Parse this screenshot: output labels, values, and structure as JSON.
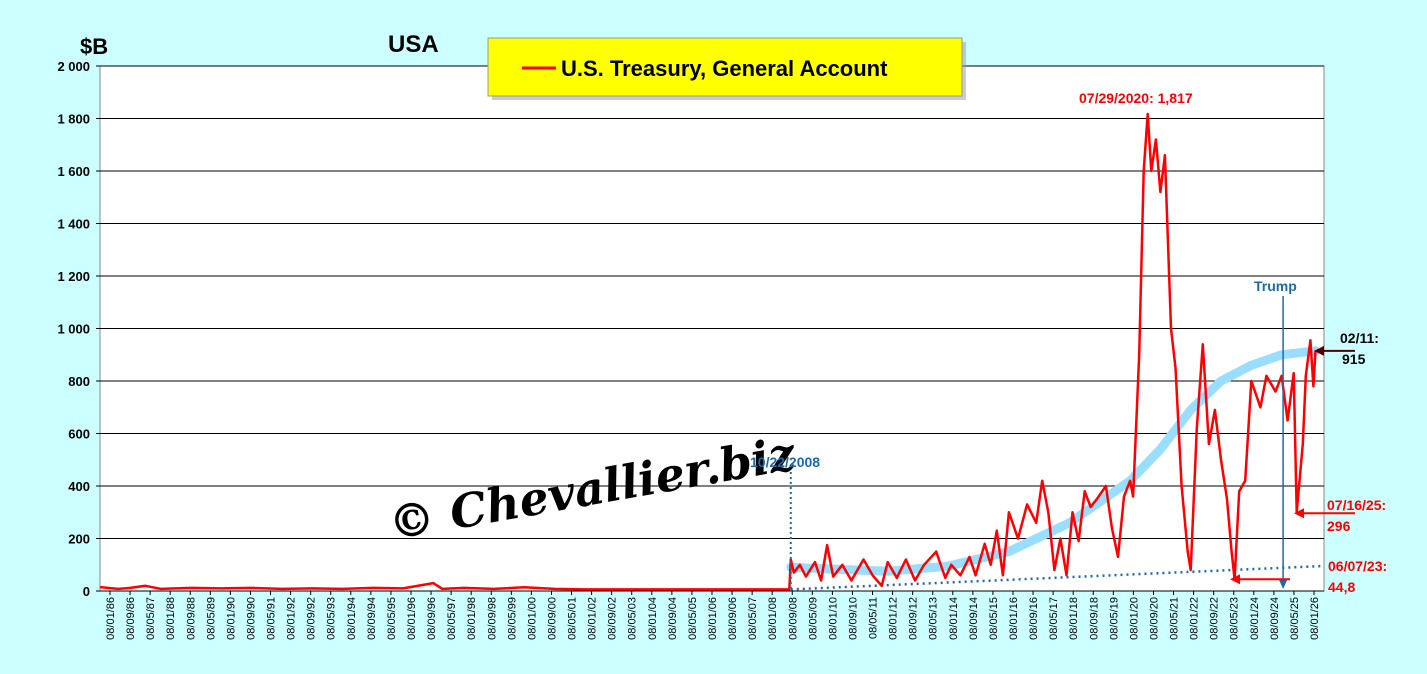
{
  "chart_data": {
    "type": "line",
    "unit_label": "$B",
    "country_label": "USA",
    "title": "",
    "xlabel": "",
    "ylabel": "",
    "ylim": [
      0,
      2000
    ],
    "y_ticks": [
      0,
      200,
      400,
      600,
      800,
      1000,
      1200,
      1400,
      1600,
      1800,
      2000
    ],
    "y_tick_labels": [
      "0",
      "200",
      "400",
      "600",
      "800",
      "1 000",
      "1 200",
      "1 400",
      "1 600",
      "1 800",
      "2 000"
    ],
    "x_tick_labels": [
      "08/01/86",
      "08/09/86",
      "08/05/87",
      "08/01/88",
      "08/09/88",
      "08/05/89",
      "08/01/90",
      "08/09/90",
      "08/05/91",
      "08/01/92",
      "08/09/92",
      "08/05/93",
      "08/01/94",
      "08/09/94",
      "08/05/95",
      "08/01/96",
      "08/09/96",
      "08/05/97",
      "08/01/98",
      "08/09/98",
      "08/05/99",
      "08/01/00",
      "08/09/00",
      "08/05/01",
      "08/01/02",
      "08/09/02",
      "08/05/03",
      "08/01/04",
      "08/09/04",
      "08/05/05",
      "08/01/06",
      "08/09/06",
      "08/05/07",
      "08/01/08",
      "08/09/08",
      "08/05/09",
      "08/01/10",
      "08/09/10",
      "08/05/11",
      "08/01/12",
      "08/09/12",
      "08/05/13",
      "08/01/14",
      "08/09/14",
      "08/05/15",
      "08/01/16",
      "08/09/16",
      "08/05/17",
      "08/01/18",
      "08/09/18",
      "08/05/19",
      "08/01/20",
      "08/09/20",
      "08/05/21",
      "08/01/22",
      "08/09/22",
      "08/05/23",
      "08/01/24",
      "08/09/24",
      "08/05/25",
      "08/01/26"
    ],
    "grid": "horizontal",
    "legend_position": "top-center",
    "series": [
      {
        "name": "U.S. Treasury, General Account",
        "color": "#ff0000",
        "points": [
          [
            1986.0,
            15
          ],
          [
            1986.6,
            8
          ],
          [
            1987.0,
            12
          ],
          [
            1987.5,
            20
          ],
          [
            1988.0,
            8
          ],
          [
            1989.0,
            12
          ],
          [
            1990.0,
            10
          ],
          [
            1991.0,
            12
          ],
          [
            1992.0,
            8
          ],
          [
            1993.0,
            10
          ],
          [
            1994.0,
            8
          ],
          [
            1995.0,
            12
          ],
          [
            1996.0,
            10
          ],
          [
            1997.0,
            30
          ],
          [
            1997.3,
            8
          ],
          [
            1998.0,
            12
          ],
          [
            1999.0,
            8
          ],
          [
            2000.0,
            14
          ],
          [
            2001.0,
            8
          ],
          [
            2002.0,
            6
          ],
          [
            2003.0,
            6
          ],
          [
            2004.0,
            6
          ],
          [
            2005.0,
            6
          ],
          [
            2006.0,
            6
          ],
          [
            2007.0,
            6
          ],
          [
            2008.0,
            6
          ],
          [
            2008.75,
            6
          ],
          [
            2008.8,
            120
          ],
          [
            2008.9,
            70
          ],
          [
            2009.1,
            100
          ],
          [
            2009.3,
            55
          ],
          [
            2009.6,
            110
          ],
          [
            2009.8,
            40
          ],
          [
            2010.0,
            175
          ],
          [
            2010.2,
            55
          ],
          [
            2010.5,
            100
          ],
          [
            2010.8,
            40
          ],
          [
            2011.2,
            120
          ],
          [
            2011.5,
            60
          ],
          [
            2011.8,
            20
          ],
          [
            2012.0,
            110
          ],
          [
            2012.3,
            50
          ],
          [
            2012.6,
            120
          ],
          [
            2012.9,
            40
          ],
          [
            2013.2,
            100
          ],
          [
            2013.6,
            150
          ],
          [
            2013.9,
            50
          ],
          [
            2014.1,
            100
          ],
          [
            2014.4,
            60
          ],
          [
            2014.7,
            130
          ],
          [
            2014.9,
            60
          ],
          [
            2015.2,
            180
          ],
          [
            2015.4,
            100
          ],
          [
            2015.6,
            230
          ],
          [
            2015.8,
            60
          ],
          [
            2016.0,
            300
          ],
          [
            2016.3,
            200
          ],
          [
            2016.6,
            330
          ],
          [
            2016.9,
            260
          ],
          [
            2017.1,
            420
          ],
          [
            2017.3,
            300
          ],
          [
            2017.5,
            80
          ],
          [
            2017.7,
            200
          ],
          [
            2017.9,
            60
          ],
          [
            2018.1,
            300
          ],
          [
            2018.3,
            190
          ],
          [
            2018.5,
            380
          ],
          [
            2018.7,
            320
          ],
          [
            2018.9,
            350
          ],
          [
            2019.2,
            400
          ],
          [
            2019.4,
            240
          ],
          [
            2019.6,
            130
          ],
          [
            2019.8,
            360
          ],
          [
            2020.0,
            420
          ],
          [
            2020.1,
            360
          ],
          [
            2020.3,
            900
          ],
          [
            2020.45,
            1600
          ],
          [
            2020.58,
            1817
          ],
          [
            2020.7,
            1600
          ],
          [
            2020.85,
            1720
          ],
          [
            2021.0,
            1520
          ],
          [
            2021.15,
            1660
          ],
          [
            2021.35,
            1000
          ],
          [
            2021.5,
            850
          ],
          [
            2021.7,
            400
          ],
          [
            2021.9,
            150
          ],
          [
            2022.0,
            80
          ],
          [
            2022.2,
            620
          ],
          [
            2022.4,
            940
          ],
          [
            2022.6,
            560
          ],
          [
            2022.8,
            690
          ],
          [
            2023.0,
            500
          ],
          [
            2023.2,
            350
          ],
          [
            2023.35,
            150
          ],
          [
            2023.45,
            45
          ],
          [
            2023.6,
            380
          ],
          [
            2023.8,
            420
          ],
          [
            2024.0,
            800
          ],
          [
            2024.3,
            700
          ],
          [
            2024.5,
            820
          ],
          [
            2024.8,
            760
          ],
          [
            2025.0,
            820
          ],
          [
            2025.2,
            650
          ],
          [
            2025.4,
            830
          ],
          [
            2025.5,
            300
          ],
          [
            2025.7,
            560
          ],
          [
            2025.8,
            820
          ],
          [
            2025.95,
            955
          ],
          [
            2026.05,
            780
          ],
          [
            2026.12,
            915
          ]
        ]
      },
      {
        "name": "",
        "color": "#99ddff",
        "points": [
          [
            2008.8,
            90
          ],
          [
            2012.0,
            75
          ],
          [
            2014.0,
            95
          ],
          [
            2016.0,
            150
          ],
          [
            2018.0,
            260
          ],
          [
            2020.0,
            420
          ],
          [
            2021.0,
            540
          ],
          [
            2022.0,
            690
          ],
          [
            2023.0,
            800
          ],
          [
            2024.0,
            860
          ],
          [
            2025.0,
            900
          ],
          [
            2026.12,
            915
          ]
        ]
      },
      {
        "name": "",
        "color": "#1a6ab0",
        "points": [
          [
            2008.8,
            6
          ],
          [
            2026.3,
            95
          ]
        ]
      }
    ],
    "annotations": {
      "peak_label": "07/29/2020: 1,817",
      "crisis_label": "10/22/2008",
      "trump_label": "Trump",
      "last_label_1": "02/11:",
      "last_label_2": "915",
      "low2025_label_1": "07/16/25:",
      "low2025_label_2": "296",
      "low2023_label_1": "06/07/23:",
      "low2023_label_2": "44,8"
    },
    "watermark": "© Chevallier.biz"
  }
}
